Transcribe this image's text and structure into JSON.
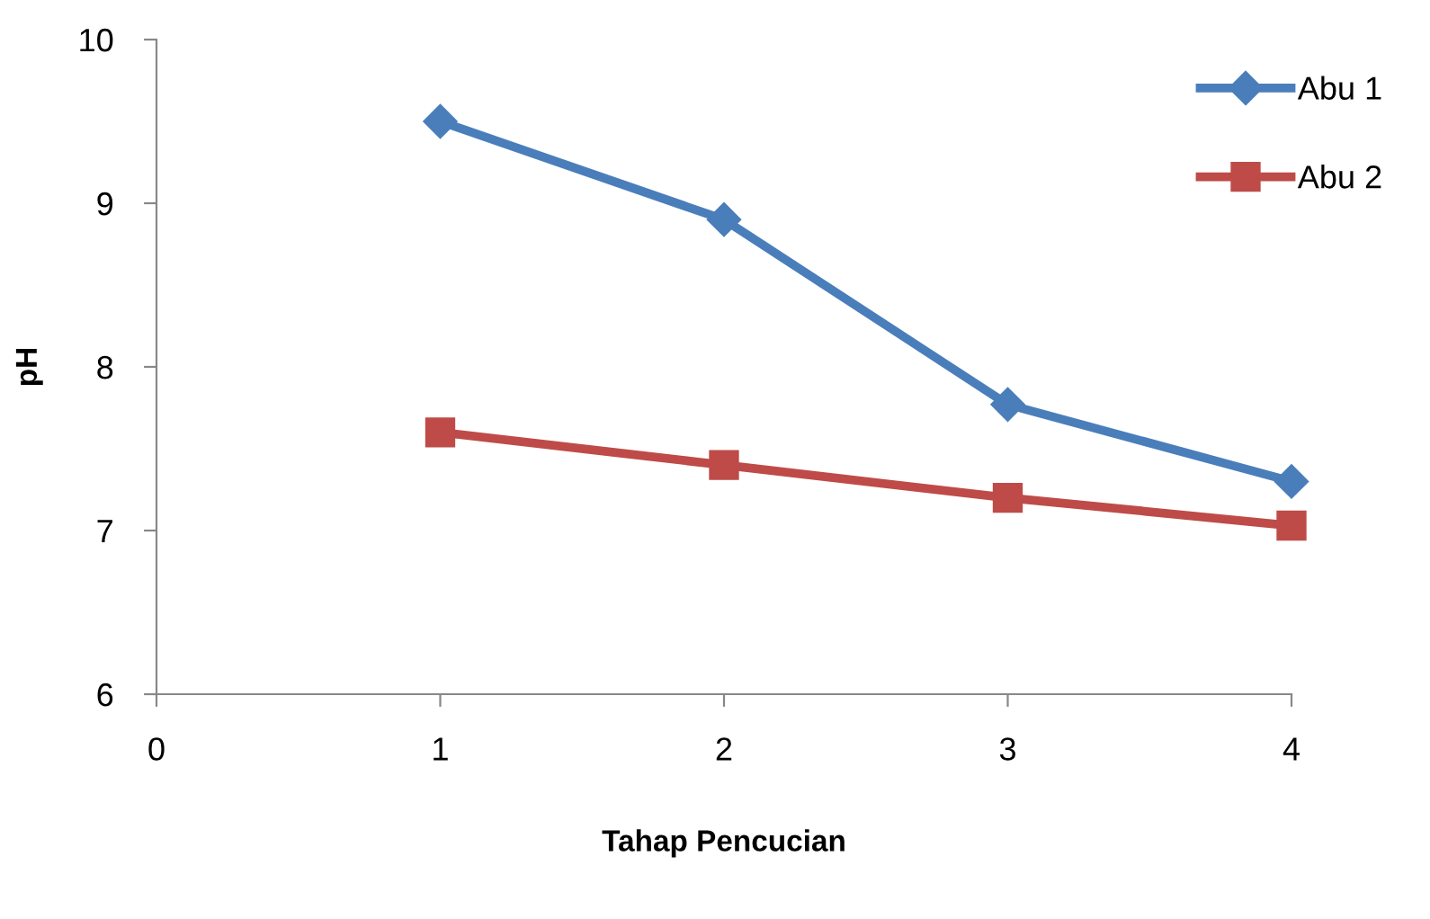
{
  "chart_data": {
    "type": "line",
    "xlabel": "Tahap Pencucian",
    "ylabel": "pH",
    "x": [
      1,
      2,
      3,
      4
    ],
    "series": [
      {
        "name": "Abu 1",
        "color": "#4a7ebb",
        "marker": "diamond",
        "values": [
          9.5,
          8.9,
          7.77,
          7.3
        ]
      },
      {
        "name": "Abu 2",
        "color": "#be4b48",
        "marker": "square",
        "values": [
          7.6,
          7.4,
          7.2,
          7.03
        ]
      }
    ],
    "xlim": [
      0,
      4
    ],
    "xticks": [
      0,
      1,
      2,
      3,
      4
    ],
    "ylim": [
      6,
      10
    ],
    "yticks": [
      6,
      7,
      8,
      9,
      10
    ],
    "grid": false,
    "legend": "right"
  }
}
